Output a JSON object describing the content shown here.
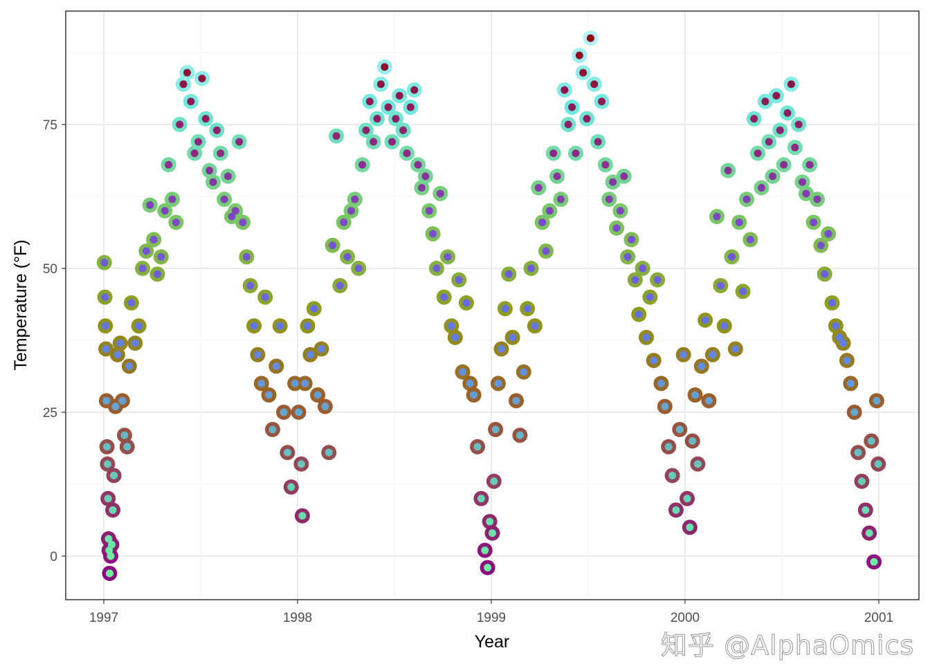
{
  "watermark": "知乎 @AlphaOmics",
  "chart_data": {
    "type": "scatter",
    "title": "",
    "xlabel": "Year",
    "ylabel": "Temperature (°F)",
    "x_ticks": [
      "1997",
      "1998",
      "1999",
      "2000",
      "2001"
    ],
    "y_ticks": [
      0,
      25,
      50,
      75
    ],
    "xlim": [
      "1996-10-20",
      "2001-03-01"
    ],
    "ylim": [
      -7.5,
      95
    ],
    "grid": true,
    "legend": "none",
    "outer_ring_color_stops": [
      {
        "temp": -3,
        "color": "#8b0a80"
      },
      {
        "temp": 15,
        "color": "#94465a"
      },
      {
        "temp": 28,
        "color": "#9a6128"
      },
      {
        "temp": 42,
        "color": "#8f9a1c"
      },
      {
        "temp": 60,
        "color": "#79c96c"
      },
      {
        "temp": 78,
        "color": "#6ee8dc"
      },
      {
        "temp": 90,
        "color": "#b4f0f8"
      }
    ],
    "inner_dot_color_stops": [
      {
        "temp": -3,
        "color": "#6ef2a0"
      },
      {
        "temp": 18,
        "color": "#66c0c0"
      },
      {
        "temp": 30,
        "color": "#6496d8"
      },
      {
        "temp": 42,
        "color": "#6470e4"
      },
      {
        "temp": 57,
        "color": "#7a4ccc"
      },
      {
        "temp": 70,
        "color": "#8e2a86"
      },
      {
        "temp": 90,
        "color": "#8b0a14"
      }
    ],
    "points": [
      [
        "1997-01-02",
        51
      ],
      [
        "1997-01-03",
        45
      ],
      [
        "1997-01-04",
        40
      ],
      [
        "1997-01-05",
        36
      ],
      [
        "1997-01-06",
        27
      ],
      [
        "1997-01-07",
        19
      ],
      [
        "1997-01-08",
        16
      ],
      [
        "1997-01-09",
        10
      ],
      [
        "1997-01-10",
        3
      ],
      [
        "1997-01-11",
        1
      ],
      [
        "1997-01-12",
        -3
      ],
      [
        "1997-01-14",
        0
      ],
      [
        "1997-01-16",
        2
      ],
      [
        "1997-01-18",
        8
      ],
      [
        "1997-01-20",
        14
      ],
      [
        "1997-01-23",
        26
      ],
      [
        "1997-01-27",
        35
      ],
      [
        "1997-02-01",
        37
      ],
      [
        "1997-02-05",
        27
      ],
      [
        "1997-02-09",
        21
      ],
      [
        "1997-02-14",
        19
      ],
      [
        "1997-02-18",
        33
      ],
      [
        "1997-02-22",
        44
      ],
      [
        "1997-03-01",
        37
      ],
      [
        "1997-03-08",
        40
      ],
      [
        "1997-03-15",
        50
      ],
      [
        "1997-03-22",
        53
      ],
      [
        "1997-03-29",
        61
      ],
      [
        "1997-04-05",
        55
      ],
      [
        "1997-04-12",
        49
      ],
      [
        "1997-04-19",
        52
      ],
      [
        "1997-04-26",
        60
      ],
      [
        "1997-05-03",
        68
      ],
      [
        "1997-05-10",
        62
      ],
      [
        "1997-05-17",
        58
      ],
      [
        "1997-05-24",
        75
      ],
      [
        "1997-05-31",
        82
      ],
      [
        "1997-06-07",
        84
      ],
      [
        "1997-06-14",
        79
      ],
      [
        "1997-06-21",
        70
      ],
      [
        "1997-06-28",
        72
      ],
      [
        "1997-07-05",
        83
      ],
      [
        "1997-07-12",
        76
      ],
      [
        "1997-07-19",
        67
      ],
      [
        "1997-07-26",
        65
      ],
      [
        "1997-08-02",
        74
      ],
      [
        "1997-08-09",
        70
      ],
      [
        "1997-08-16",
        62
      ],
      [
        "1997-08-23",
        66
      ],
      [
        "1997-08-30",
        59
      ],
      [
        "1997-09-06",
        60
      ],
      [
        "1997-09-13",
        72
      ],
      [
        "1997-09-20",
        58
      ],
      [
        "1997-09-27",
        52
      ],
      [
        "1997-10-04",
        47
      ],
      [
        "1997-10-11",
        40
      ],
      [
        "1997-10-18",
        35
      ],
      [
        "1997-10-25",
        30
      ],
      [
        "1997-11-01",
        45
      ],
      [
        "1997-11-08",
        28
      ],
      [
        "1997-11-15",
        22
      ],
      [
        "1997-11-22",
        33
      ],
      [
        "1997-11-29",
        40
      ],
      [
        "1997-12-06",
        25
      ],
      [
        "1997-12-13",
        18
      ],
      [
        "1997-12-20",
        12
      ],
      [
        "1997-12-27",
        30
      ],
      [
        "1998-01-03",
        25
      ],
      [
        "1998-01-08",
        16
      ],
      [
        "1998-01-10",
        7
      ],
      [
        "1998-01-15",
        30
      ],
      [
        "1998-01-20",
        40
      ],
      [
        "1998-01-25",
        35
      ],
      [
        "1998-02-01",
        43
      ],
      [
        "1998-02-08",
        28
      ],
      [
        "1998-02-15",
        36
      ],
      [
        "1998-02-22",
        26
      ],
      [
        "1998-03-01",
        18
      ],
      [
        "1998-03-08",
        54
      ],
      [
        "1998-03-15",
        73
      ],
      [
        "1998-03-22",
        47
      ],
      [
        "1998-03-29",
        58
      ],
      [
        "1998-04-05",
        52
      ],
      [
        "1998-04-12",
        60
      ],
      [
        "1998-04-19",
        62
      ],
      [
        "1998-04-26",
        50
      ],
      [
        "1998-05-03",
        68
      ],
      [
        "1998-05-10",
        74
      ],
      [
        "1998-05-17",
        79
      ],
      [
        "1998-05-24",
        72
      ],
      [
        "1998-05-31",
        76
      ],
      [
        "1998-06-07",
        82
      ],
      [
        "1998-06-14",
        85
      ],
      [
        "1998-06-21",
        78
      ],
      [
        "1998-06-28",
        72
      ],
      [
        "1998-07-05",
        76
      ],
      [
        "1998-07-12",
        80
      ],
      [
        "1998-07-19",
        74
      ],
      [
        "1998-07-26",
        70
      ],
      [
        "1998-08-02",
        78
      ],
      [
        "1998-08-09",
        81
      ],
      [
        "1998-08-16",
        68
      ],
      [
        "1998-08-23",
        64
      ],
      [
        "1998-08-30",
        66
      ],
      [
        "1998-09-06",
        60
      ],
      [
        "1998-09-13",
        56
      ],
      [
        "1998-09-20",
        50
      ],
      [
        "1998-09-27",
        63
      ],
      [
        "1998-10-04",
        45
      ],
      [
        "1998-10-11",
        52
      ],
      [
        "1998-10-18",
        40
      ],
      [
        "1998-10-25",
        38
      ],
      [
        "1998-11-01",
        48
      ],
      [
        "1998-11-08",
        32
      ],
      [
        "1998-11-15",
        44
      ],
      [
        "1998-11-22",
        30
      ],
      [
        "1998-11-29",
        28
      ],
      [
        "1998-12-06",
        19
      ],
      [
        "1998-12-13",
        10
      ],
      [
        "1998-12-20",
        1
      ],
      [
        "1998-12-25",
        -2
      ],
      [
        "1998-12-29",
        6
      ],
      [
        "1999-01-03",
        4
      ],
      [
        "1999-01-06",
        13
      ],
      [
        "1999-01-09",
        22
      ],
      [
        "1999-01-14",
        30
      ],
      [
        "1999-01-20",
        36
      ],
      [
        "1999-01-27",
        43
      ],
      [
        "1999-02-03",
        49
      ],
      [
        "1999-02-10",
        38
      ],
      [
        "1999-02-17",
        27
      ],
      [
        "1999-02-24",
        21
      ],
      [
        "1999-03-03",
        32
      ],
      [
        "1999-03-10",
        43
      ],
      [
        "1999-03-17",
        50
      ],
      [
        "1999-03-24",
        40
      ],
      [
        "1999-03-31",
        64
      ],
      [
        "1999-04-07",
        58
      ],
      [
        "1999-04-14",
        53
      ],
      [
        "1999-04-21",
        60
      ],
      [
        "1999-04-28",
        70
      ],
      [
        "1999-05-05",
        66
      ],
      [
        "1999-05-12",
        62
      ],
      [
        "1999-05-19",
        81
      ],
      [
        "1999-05-26",
        75
      ],
      [
        "1999-06-02",
        78
      ],
      [
        "1999-06-09",
        70
      ],
      [
        "1999-06-16",
        87
      ],
      [
        "1999-06-23",
        84
      ],
      [
        "1999-06-30",
        76
      ],
      [
        "1999-07-07",
        90
      ],
      [
        "1999-07-14",
        82
      ],
      [
        "1999-07-21",
        72
      ],
      [
        "1999-07-28",
        79
      ],
      [
        "1999-08-04",
        68
      ],
      [
        "1999-08-11",
        62
      ],
      [
        "1999-08-18",
        65
      ],
      [
        "1999-08-25",
        57
      ],
      [
        "1999-09-01",
        60
      ],
      [
        "1999-09-08",
        66
      ],
      [
        "1999-09-15",
        52
      ],
      [
        "1999-09-22",
        55
      ],
      [
        "1999-09-29",
        48
      ],
      [
        "1999-10-06",
        42
      ],
      [
        "1999-10-13",
        50
      ],
      [
        "1999-10-20",
        38
      ],
      [
        "1999-10-27",
        45
      ],
      [
        "1999-11-03",
        34
      ],
      [
        "1999-11-10",
        48
      ],
      [
        "1999-11-17",
        30
      ],
      [
        "1999-11-24",
        26
      ],
      [
        "1999-12-01",
        19
      ],
      [
        "1999-12-08",
        14
      ],
      [
        "1999-12-15",
        8
      ],
      [
        "1999-12-22",
        22
      ],
      [
        "1999-12-29",
        35
      ],
      [
        "2000-01-05",
        10
      ],
      [
        "2000-01-10",
        5
      ],
      [
        "2000-01-15",
        20
      ],
      [
        "2000-01-20",
        28
      ],
      [
        "2000-01-25",
        16
      ],
      [
        "2000-02-01",
        33
      ],
      [
        "2000-02-08",
        41
      ],
      [
        "2000-02-15",
        27
      ],
      [
        "2000-02-22",
        35
      ],
      [
        "2000-03-01",
        59
      ],
      [
        "2000-03-08",
        47
      ],
      [
        "2000-03-15",
        40
      ],
      [
        "2000-03-22",
        67
      ],
      [
        "2000-03-29",
        52
      ],
      [
        "2000-04-05",
        36
      ],
      [
        "2000-04-12",
        58
      ],
      [
        "2000-04-19",
        46
      ],
      [
        "2000-04-26",
        62
      ],
      [
        "2000-05-03",
        55
      ],
      [
        "2000-05-10",
        76
      ],
      [
        "2000-05-17",
        70
      ],
      [
        "2000-05-24",
        64
      ],
      [
        "2000-05-31",
        79
      ],
      [
        "2000-06-07",
        72
      ],
      [
        "2000-06-14",
        66
      ],
      [
        "2000-06-21",
        80
      ],
      [
        "2000-06-28",
        74
      ],
      [
        "2000-07-05",
        68
      ],
      [
        "2000-07-12",
        77
      ],
      [
        "2000-07-19",
        82
      ],
      [
        "2000-07-26",
        71
      ],
      [
        "2000-08-02",
        75
      ],
      [
        "2000-08-09",
        65
      ],
      [
        "2000-08-16",
        63
      ],
      [
        "2000-08-23",
        68
      ],
      [
        "2000-08-30",
        58
      ],
      [
        "2000-09-06",
        62
      ],
      [
        "2000-09-13",
        54
      ],
      [
        "2000-09-20",
        49
      ],
      [
        "2000-09-27",
        56
      ],
      [
        "2000-10-04",
        44
      ],
      [
        "2000-10-11",
        40
      ],
      [
        "2000-10-18",
        38
      ],
      [
        "2000-10-25",
        37
      ],
      [
        "2000-11-01",
        34
      ],
      [
        "2000-11-08",
        30
      ],
      [
        "2000-11-15",
        25
      ],
      [
        "2000-11-22",
        18
      ],
      [
        "2000-11-29",
        13
      ],
      [
        "2000-12-06",
        8
      ],
      [
        "2000-12-13",
        4
      ],
      [
        "2000-12-17",
        20
      ],
      [
        "2000-12-22",
        -1
      ],
      [
        "2000-12-27",
        27
      ],
      [
        "2000-12-30",
        16
      ]
    ]
  }
}
